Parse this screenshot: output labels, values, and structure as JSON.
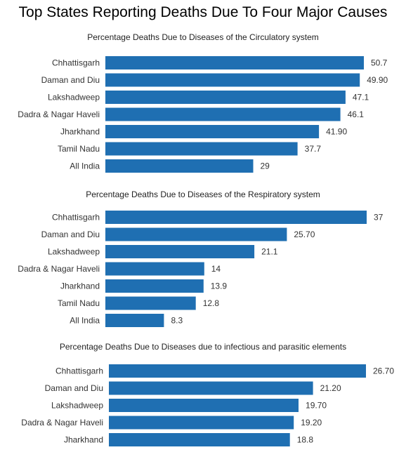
{
  "title": "Top States Reporting Deaths Due To Four Major Causes",
  "bar_color": "#1f6fb2",
  "chart_data": [
    {
      "type": "bar",
      "orientation": "horizontal",
      "title": "Percentage Deaths Due to Diseases of the Circulatory system",
      "categories": [
        "Chhattisgarh",
        "Daman and Diu",
        "Lakshadweep",
        "Dadra & Nagar Haveli",
        "Jharkhand",
        "Tamil Nadu",
        "All India"
      ],
      "values": [
        50.7,
        49.9,
        47.1,
        46.1,
        41.9,
        37.7,
        29
      ],
      "value_labels": [
        "50.7",
        "49.90",
        "47.1",
        "46.1",
        "41.90",
        "37.7",
        "29"
      ],
      "grid": false
    },
    {
      "type": "bar",
      "orientation": "horizontal",
      "title": "Percentage Deaths Due to Diseases of the Respiratory system",
      "categories": [
        "Chhattisgarh",
        "Daman and Diu",
        "Lakshadweep",
        "Dadra & Nagar Haveli",
        "Jharkhand",
        "Tamil Nadu",
        "All India"
      ],
      "values": [
        37,
        25.7,
        21.1,
        14,
        13.9,
        12.8,
        8.3
      ],
      "value_labels": [
        "37",
        "25.70",
        "21.1",
        "14",
        "13.9",
        "12.8",
        "8.3"
      ],
      "grid": false
    },
    {
      "type": "bar",
      "orientation": "horizontal",
      "title": "Percentage Deaths Due to Diseases due to infectious and parasitic elements",
      "categories": [
        "Chhattisgarh",
        "Daman and Diu",
        "Lakshadweep",
        "Dadra & Nagar Haveli",
        "Jharkhand"
      ],
      "values": [
        26.7,
        21.2,
        19.7,
        19.2,
        18.8
      ],
      "value_labels": [
        "26.70",
        "21.20",
        "19.70",
        "19.20",
        "18.8"
      ],
      "grid": false
    }
  ]
}
